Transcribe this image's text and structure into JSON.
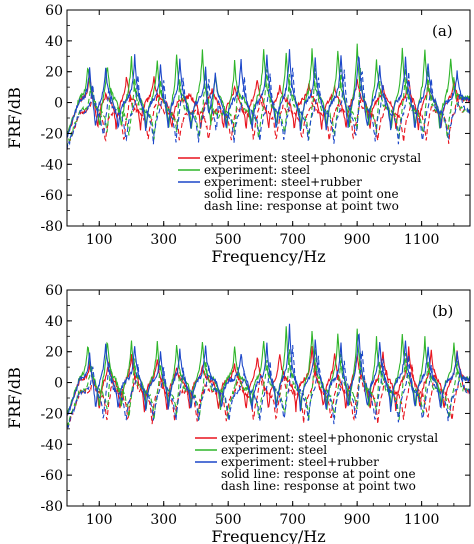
{
  "chart_data": [
    {
      "panel": "(a)",
      "type": "line",
      "xlabel": "Frequency/Hz",
      "ylabel": "FRF/dB",
      "xlim": [
        0,
        1250
      ],
      "ylim": [
        -80,
        60
      ],
      "xticks": [
        100,
        300,
        500,
        700,
        900,
        1100
      ],
      "yticks": [
        -80,
        -60,
        -40,
        -20,
        0,
        20,
        40,
        60
      ],
      "colors": {
        "red": "#e8141e",
        "green": "#2fb52a",
        "blue": "#1c47c9"
      },
      "legend": [
        "experiment: steel+phononic crystal",
        "experiment: steel",
        "experiment: steel+rubber",
        "solid line: response at point one",
        "dash line: response at point two"
      ],
      "legend_position": "lower-right",
      "red_peaks": [
        {
          "f": 70,
          "a": 20
        },
        {
          "f": 120,
          "a": 5
        },
        {
          "f": 185,
          "a": 18
        },
        {
          "f": 270,
          "a": 18
        },
        {
          "f": 380,
          "a": 4
        },
        {
          "f": 450,
          "a": 8
        },
        {
          "f": 520,
          "a": 10
        },
        {
          "f": 590,
          "a": 16
        },
        {
          "f": 660,
          "a": 10
        },
        {
          "f": 750,
          "a": 12
        },
        {
          "f": 830,
          "a": 10
        },
        {
          "f": 900,
          "a": 15
        },
        {
          "f": 980,
          "a": 10
        },
        {
          "f": 1060,
          "a": 15
        },
        {
          "f": 1120,
          "a": 10
        },
        {
          "f": 1200,
          "a": 15
        }
      ],
      "green_peaks": [
        {
          "f": 65,
          "a": 25
        },
        {
          "f": 125,
          "a": 28
        },
        {
          "f": 200,
          "a": 30
        },
        {
          "f": 280,
          "a": 28
        },
        {
          "f": 340,
          "a": 32
        },
        {
          "f": 420,
          "a": 35
        },
        {
          "f": 460,
          "a": 22
        },
        {
          "f": 520,
          "a": 28
        },
        {
          "f": 610,
          "a": 36
        },
        {
          "f": 680,
          "a": 33
        },
        {
          "f": 760,
          "a": 35
        },
        {
          "f": 840,
          "a": 36
        },
        {
          "f": 900,
          "a": 40
        },
        {
          "f": 960,
          "a": 30
        },
        {
          "f": 1040,
          "a": 38
        },
        {
          "f": 1110,
          "a": 35
        },
        {
          "f": 1190,
          "a": 30
        }
      ],
      "blue_peaks": [
        {
          "f": 70,
          "a": 25
        },
        {
          "f": 120,
          "a": 25
        },
        {
          "f": 210,
          "a": 32
        },
        {
          "f": 290,
          "a": 26
        },
        {
          "f": 350,
          "a": 30
        },
        {
          "f": 430,
          "a": 30
        },
        {
          "f": 460,
          "a": 20
        },
        {
          "f": 540,
          "a": 30
        },
        {
          "f": 620,
          "a": 32
        },
        {
          "f": 690,
          "a": 38
        },
        {
          "f": 770,
          "a": 30
        },
        {
          "f": 850,
          "a": 34
        },
        {
          "f": 905,
          "a": 38
        },
        {
          "f": 970,
          "a": 25
        },
        {
          "f": 1050,
          "a": 32
        },
        {
          "f": 1120,
          "a": 28
        },
        {
          "f": 1210,
          "a": 20
        }
      ]
    },
    {
      "panel": "(b)",
      "type": "line",
      "xlabel": "Frequency/Hz",
      "ylabel": "FRF/dB",
      "xlim": [
        0,
        1250
      ],
      "ylim": [
        -80,
        60
      ],
      "xticks": [
        100,
        300,
        500,
        700,
        900,
        1100
      ],
      "yticks": [
        -80,
        -60,
        -40,
        -20,
        0,
        20,
        40,
        60
      ],
      "colors": {
        "red": "#e8141e",
        "green": "#2fb52a",
        "blue": "#1c47c9"
      },
      "legend": [
        "experiment: steel+phononic crystal",
        "experiment: steel",
        "experiment: steel+rubber",
        "solid line: response at point one",
        "dash line: response at point two"
      ],
      "legend_position": "lower-right",
      "red_peaks": [
        {
          "f": 70,
          "a": 12
        },
        {
          "f": 130,
          "a": 15
        },
        {
          "f": 200,
          "a": 18
        },
        {
          "f": 280,
          "a": 15
        },
        {
          "f": 340,
          "a": 8
        },
        {
          "f": 420,
          "a": 10
        },
        {
          "f": 520,
          "a": 12
        },
        {
          "f": 590,
          "a": 18
        },
        {
          "f": 660,
          "a": 20
        },
        {
          "f": 760,
          "a": 25
        },
        {
          "f": 830,
          "a": 20
        },
        {
          "f": 900,
          "a": 20
        },
        {
          "f": 980,
          "a": 22
        },
        {
          "f": 1060,
          "a": 25
        },
        {
          "f": 1130,
          "a": 22
        },
        {
          "f": 1210,
          "a": 22
        }
      ],
      "green_peaks": [
        {
          "f": 65,
          "a": 25
        },
        {
          "f": 125,
          "a": 30
        },
        {
          "f": 200,
          "a": 28
        },
        {
          "f": 280,
          "a": 26
        },
        {
          "f": 340,
          "a": 25
        },
        {
          "f": 420,
          "a": 28
        },
        {
          "f": 520,
          "a": 22
        },
        {
          "f": 610,
          "a": 28
        },
        {
          "f": 680,
          "a": 38
        },
        {
          "f": 760,
          "a": 36
        },
        {
          "f": 840,
          "a": 32
        },
        {
          "f": 900,
          "a": 38
        },
        {
          "f": 960,
          "a": 30
        },
        {
          "f": 1040,
          "a": 32
        },
        {
          "f": 1110,
          "a": 30
        },
        {
          "f": 1200,
          "a": 25
        }
      ],
      "blue_peaks": [
        {
          "f": 70,
          "a": 22
        },
        {
          "f": 120,
          "a": 28
        },
        {
          "f": 210,
          "a": 25
        },
        {
          "f": 290,
          "a": 22
        },
        {
          "f": 350,
          "a": 22
        },
        {
          "f": 430,
          "a": 25
        },
        {
          "f": 540,
          "a": 20
        },
        {
          "f": 620,
          "a": 26
        },
        {
          "f": 690,
          "a": 40
        },
        {
          "f": 770,
          "a": 30
        },
        {
          "f": 850,
          "a": 28
        },
        {
          "f": 905,
          "a": 40
        },
        {
          "f": 970,
          "a": 28
        },
        {
          "f": 1050,
          "a": 30
        },
        {
          "f": 1120,
          "a": 25
        },
        {
          "f": 1210,
          "a": 20
        }
      ]
    }
  ]
}
